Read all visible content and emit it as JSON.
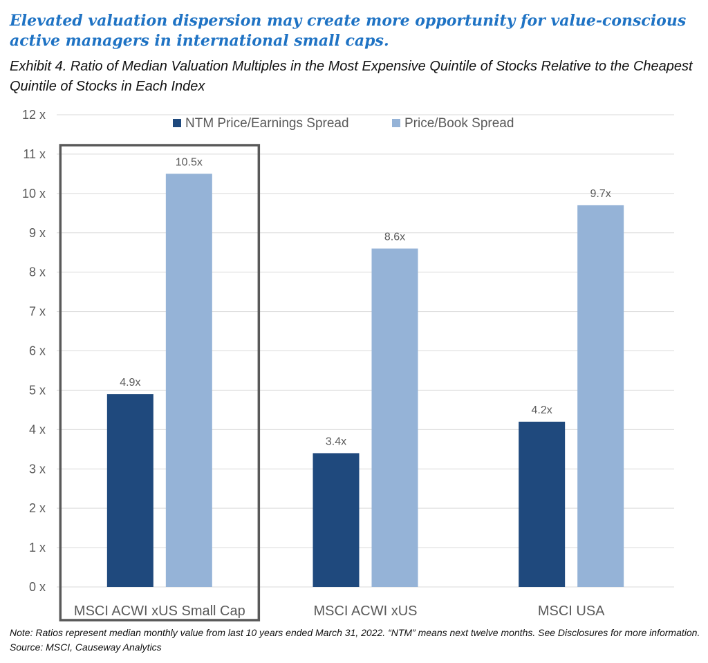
{
  "headline": "Elevated valuation dispersion may create more opportunity for value-conscious active managers in international small caps.",
  "exhibit_title": "Exhibit 4. Ratio of Median Valuation Multiples in the Most Expensive Quintile of Stocks Relative to the Cheapest Quintile of Stocks in Each Index",
  "note": "Note: Ratios represent median monthly value from last 10 years ended March 31, 2022.  “NTM” means next twelve months.  See Disclosures for more information.   Source: MSCI, Causeway Analytics",
  "chart_data": {
    "type": "bar",
    "categories": [
      "MSCI ACWI xUS Small Cap",
      "MSCI ACWI xUS",
      "MSCI USA"
    ],
    "series": [
      {
        "name": "NTM Price/Earnings Spread",
        "values": [
          4.9,
          3.4,
          4.2
        ],
        "labels": [
          "4.9x",
          "3.4x",
          "4.2x"
        ],
        "color": "#1f497d"
      },
      {
        "name": "Price/Book Spread",
        "values": [
          10.5,
          8.6,
          9.7
        ],
        "labels": [
          "10.5x",
          "8.6x",
          "9.7x"
        ],
        "color": "#95b3d7"
      }
    ],
    "ylim": [
      0,
      12
    ],
    "y_ticks": [
      "0 x",
      "1 x",
      "2 x",
      "3 x",
      "4 x",
      "5 x",
      "6 x",
      "7 x",
      "8 x",
      "9 x",
      "10 x",
      "11 x",
      "12 x"
    ],
    "grid": true,
    "legend_position": "top",
    "highlighted_category": "MSCI ACWI xUS Small Cap",
    "highlight_color": "#595959"
  }
}
